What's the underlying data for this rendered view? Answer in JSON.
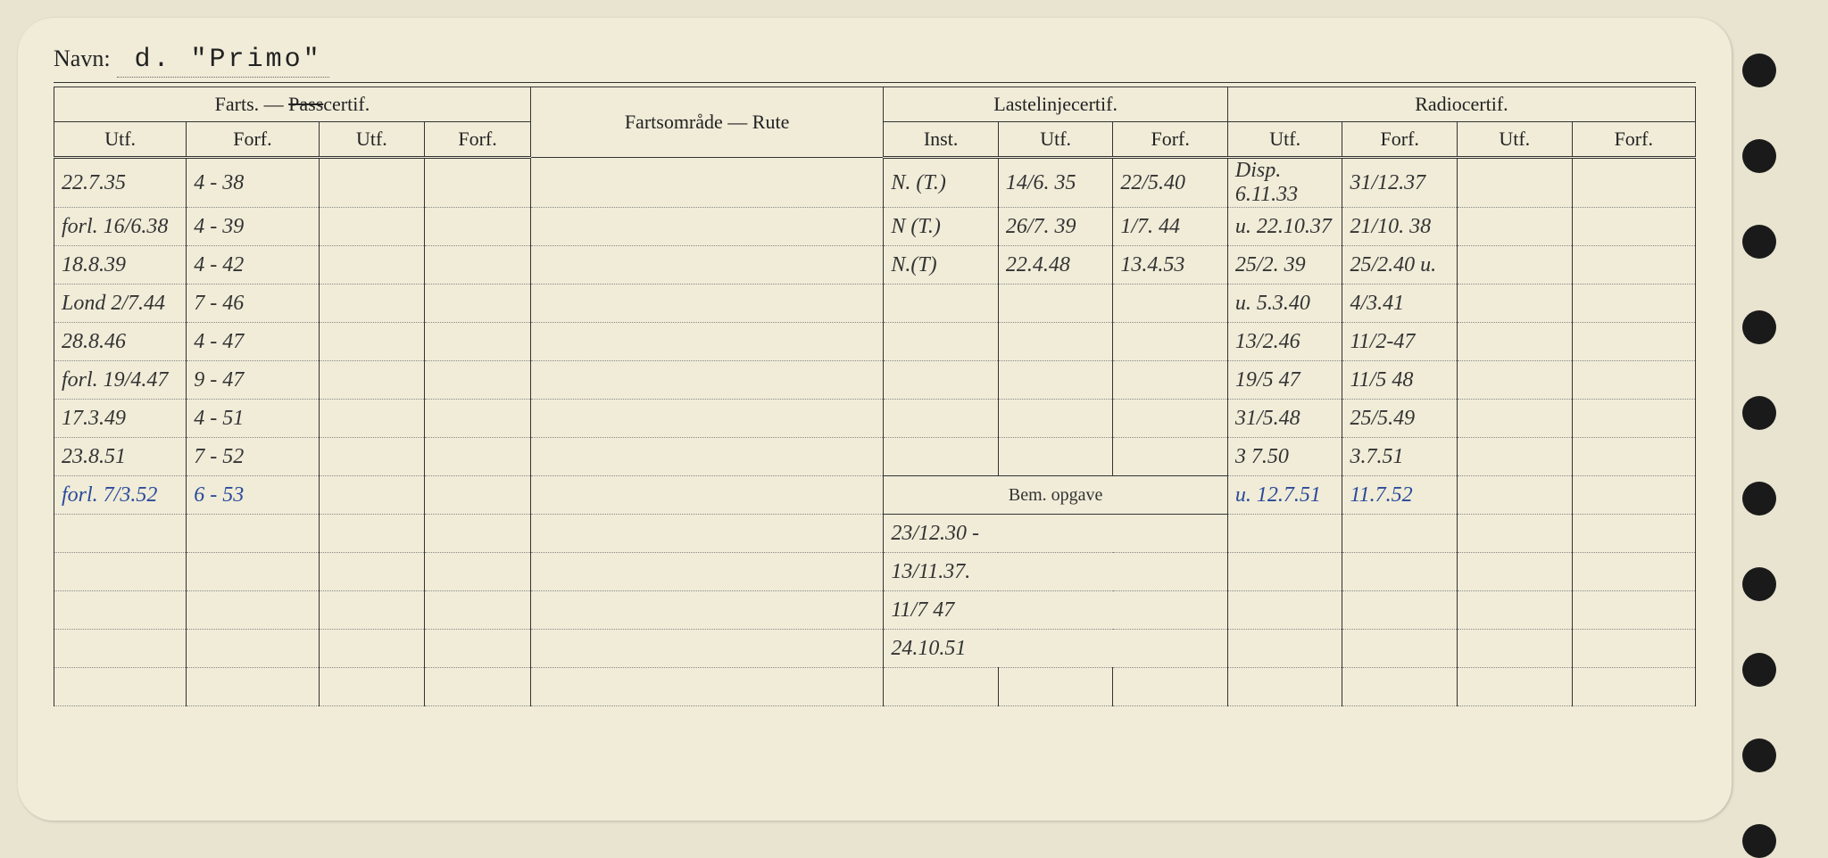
{
  "header": {
    "name_label": "Navn:",
    "name_value": "d.  \"Primo\""
  },
  "groups": {
    "farts": "Farts. — ",
    "farts_strike": "Pass",
    "farts_suffix": "certif.",
    "fartsomrade": "Fartsområde — Rute",
    "lastelinje": "Lastelinjecertif.",
    "radio": "Radiocertif.",
    "bem": "Bem. opgave"
  },
  "cols": {
    "utf": "Utf.",
    "forf": "Forf.",
    "inst": "Inst."
  },
  "rows": [
    {
      "c1": "22.7.35",
      "c2": "4 - 38",
      "c6": "N. (T.)",
      "c7": "14/6. 35",
      "c8": "22/5.40",
      "c9": "Disp. 6.11.33",
      "c10": "31/12.37"
    },
    {
      "c1": "forl. 16/6.38",
      "c2": "4 - 39",
      "c6": "N (T.)",
      "c7": "26/7. 39",
      "c8": "1/7. 44",
      "c9": "u. 22.10.37",
      "c10": "21/10. 38"
    },
    {
      "c1": "18.8.39",
      "c2": "4 - 42",
      "c6": "N.(T)",
      "c7": "22.4.48",
      "c8": "13.4.53",
      "c9": "25/2. 39",
      "c10": "25/2.40 u."
    },
    {
      "c1": "Lond 2/7.44",
      "c2": "7 - 46",
      "c9": "u. 5.3.40",
      "c10": "4/3.41"
    },
    {
      "c1": "28.8.46",
      "c2": "4 - 47",
      "c9": "13/2.46",
      "c10": "11/2-47"
    },
    {
      "c1": "forl. 19/4.47",
      "c2": "9 - 47",
      "c9": "19/5 47",
      "c10": "11/5 48"
    },
    {
      "c1": "17.3.49",
      "c2": "4 - 51",
      "c9": "31/5.48",
      "c10": "25/5.49"
    },
    {
      "c1": "23.8.51",
      "c2": "7 - 52",
      "c9": "3 7.50",
      "c10": "3.7.51"
    },
    {
      "c1": "forl. 7/3.52",
      "c2": "6 - 53",
      "c1_class": "blue",
      "c2_class": "blue",
      "c9": "u. 12.7.51",
      "c10": "11.7.52",
      "c9_class": "blue",
      "c10_class": "blue"
    },
    {
      "c6": "23/12.30 -"
    },
    {
      "c6": "13/11.37."
    },
    {
      "c6": "11/7 47"
    },
    {
      "c6": "24.10.51"
    },
    {}
  ]
}
